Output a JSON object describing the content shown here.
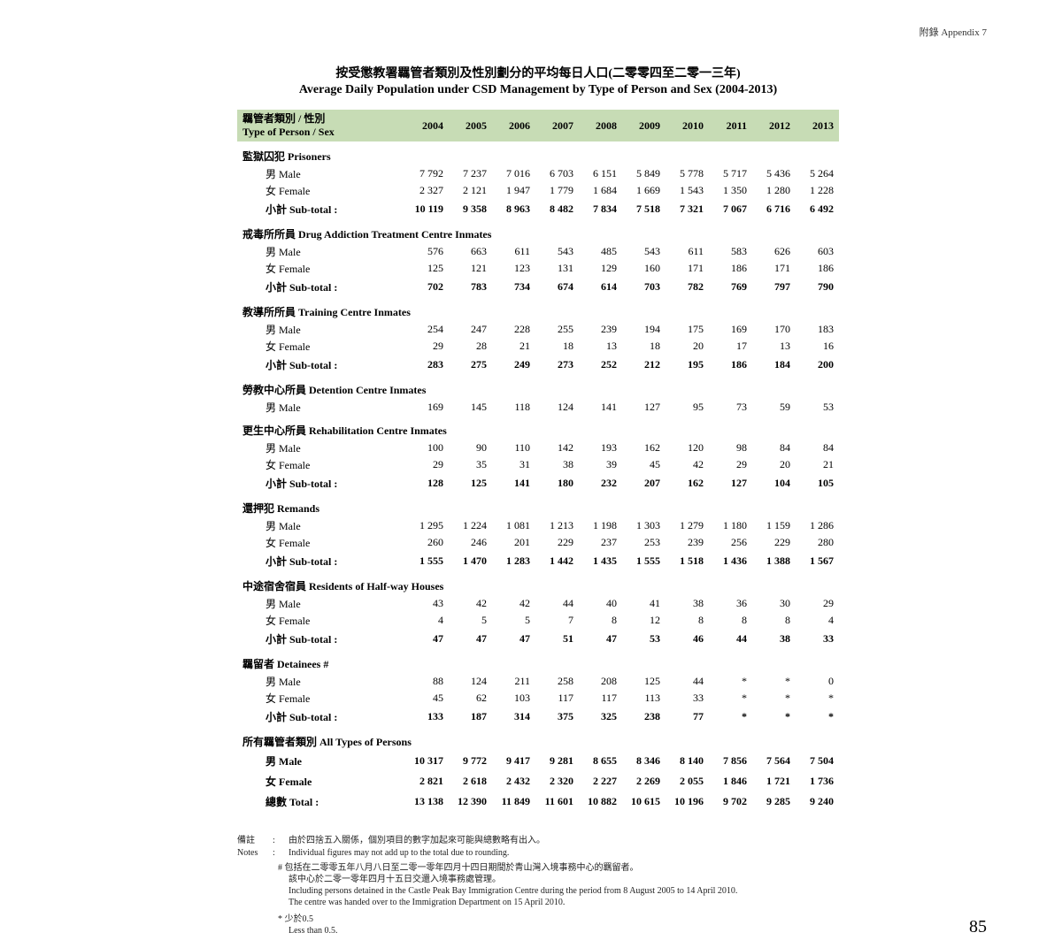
{
  "appendix": "附錄  Appendix 7",
  "page_number": "85",
  "title_zh": "按受懲教署羈管者類別及性別劃分的平均每日人口(二零零四至二零一三年)",
  "title_en": "Average Daily Population under CSD Management by Type of Person and Sex (2004-2013)",
  "header_label_zh": "羈管者類別 / 性別",
  "header_label_en": "Type of Person / Sex",
  "years": [
    "2004",
    "2005",
    "2006",
    "2007",
    "2008",
    "2009",
    "2010",
    "2011",
    "2012",
    "2013"
  ],
  "colors": {
    "header_bg": "#c7dcb5",
    "text": "#000000",
    "page_bg": "#ffffff"
  },
  "sections": [
    {
      "heading": "監獄囚犯 Prisoners",
      "rows": [
        {
          "label": "男 Male",
          "v": [
            "7 792",
            "7 237",
            "7 016",
            "6 703",
            "6 151",
            "5 849",
            "5 778",
            "5 717",
            "5 436",
            "5 264"
          ]
        },
        {
          "label": "女 Female",
          "v": [
            "2 327",
            "2 121",
            "1 947",
            "1 779",
            "1 684",
            "1 669",
            "1 543",
            "1 350",
            "1 280",
            "1 228"
          ]
        }
      ],
      "subtotal": {
        "label": "小計 Sub-total :",
        "v": [
          "10 119",
          "9 358",
          "8 963",
          "8 482",
          "7 834",
          "7 518",
          "7 321",
          "7 067",
          "6 716",
          "6 492"
        ]
      }
    },
    {
      "heading": "戒毒所所員 Drug Addiction Treatment Centre Inmates",
      "rows": [
        {
          "label": "男 Male",
          "v": [
            "576",
            "663",
            "611",
            "543",
            "485",
            "543",
            "611",
            "583",
            "626",
            "603"
          ]
        },
        {
          "label": "女 Female",
          "v": [
            "125",
            "121",
            "123",
            "131",
            "129",
            "160",
            "171",
            "186",
            "171",
            "186"
          ]
        }
      ],
      "subtotal": {
        "label": "小計 Sub-total :",
        "v": [
          "702",
          "783",
          "734",
          "674",
          "614",
          "703",
          "782",
          "769",
          "797",
          "790"
        ]
      }
    },
    {
      "heading": "教導所所員 Training Centre Inmates",
      "rows": [
        {
          "label": "男 Male",
          "v": [
            "254",
            "247",
            "228",
            "255",
            "239",
            "194",
            "175",
            "169",
            "170",
            "183"
          ]
        },
        {
          "label": "女 Female",
          "v": [
            "29",
            "28",
            "21",
            "18",
            "13",
            "18",
            "20",
            "17",
            "13",
            "16"
          ]
        }
      ],
      "subtotal": {
        "label": "小計 Sub-total :",
        "v": [
          "283",
          "275",
          "249",
          "273",
          "252",
          "212",
          "195",
          "186",
          "184",
          "200"
        ]
      }
    },
    {
      "heading": "勞教中心所員 Detention Centre Inmates",
      "rows": [
        {
          "label": "男 Male",
          "v": [
            "169",
            "145",
            "118",
            "124",
            "141",
            "127",
            "95",
            "73",
            "59",
            "53"
          ]
        }
      ]
    },
    {
      "heading": "更生中心所員 Rehabilitation Centre Inmates",
      "rows": [
        {
          "label": "男 Male",
          "v": [
            "100",
            "90",
            "110",
            "142",
            "193",
            "162",
            "120",
            "98",
            "84",
            "84"
          ]
        },
        {
          "label": "女 Female",
          "v": [
            "29",
            "35",
            "31",
            "38",
            "39",
            "45",
            "42",
            "29",
            "20",
            "21"
          ]
        }
      ],
      "subtotal": {
        "label": "小計 Sub-total :",
        "v": [
          "128",
          "125",
          "141",
          "180",
          "232",
          "207",
          "162",
          "127",
          "104",
          "105"
        ]
      }
    },
    {
      "heading": "還押犯 Remands",
      "rows": [
        {
          "label": "男 Male",
          "v": [
            "1 295",
            "1 224",
            "1 081",
            "1 213",
            "1 198",
            "1 303",
            "1 279",
            "1 180",
            "1 159",
            "1 286"
          ]
        },
        {
          "label": "女 Female",
          "v": [
            "260",
            "246",
            "201",
            "229",
            "237",
            "253",
            "239",
            "256",
            "229",
            "280"
          ]
        }
      ],
      "subtotal": {
        "label": "小計 Sub-total :",
        "v": [
          "1 555",
          "1 470",
          "1 283",
          "1 442",
          "1 435",
          "1 555",
          "1 518",
          "1 436",
          "1 388",
          "1 567"
        ]
      }
    },
    {
      "heading": "中途宿舍宿員 Residents of Half-way Houses",
      "rows": [
        {
          "label": "男 Male",
          "v": [
            "43",
            "42",
            "42",
            "44",
            "40",
            "41",
            "38",
            "36",
            "30",
            "29"
          ]
        },
        {
          "label": "女 Female",
          "v": [
            "4",
            "5",
            "5",
            "7",
            "8",
            "12",
            "8",
            "8",
            "8",
            "4"
          ]
        }
      ],
      "subtotal": {
        "label": "小計 Sub-total :",
        "v": [
          "47",
          "47",
          "47",
          "51",
          "47",
          "53",
          "46",
          "44",
          "38",
          "33"
        ]
      }
    },
    {
      "heading": "羈留者 Detainees #",
      "rows": [
        {
          "label": "男 Male",
          "v": [
            "88",
            "124",
            "211",
            "258",
            "208",
            "125",
            "44",
            "*",
            "*",
            "0"
          ]
        },
        {
          "label": "女 Female",
          "v": [
            "45",
            "62",
            "103",
            "117",
            "117",
            "113",
            "33",
            "*",
            "*",
            "*"
          ]
        }
      ],
      "subtotal": {
        "label": "小計 Sub-total :",
        "v": [
          "133",
          "187",
          "314",
          "375",
          "325",
          "238",
          "77",
          "*",
          "*",
          "*"
        ]
      }
    }
  ],
  "all_types": {
    "heading": "所有羈管者類別 All Types of Persons",
    "rows": [
      {
        "label": "男 Male",
        "v": [
          "10 317",
          "9 772",
          "9 417",
          "9 281",
          "8 655",
          "8 346",
          "8 140",
          "7 856",
          "7 564",
          "7 504"
        ]
      },
      {
        "label": "女 Female",
        "v": [
          "2 821",
          "2 618",
          "2 432",
          "2 320",
          "2 227",
          "2 269",
          "2 055",
          "1 846",
          "1 721",
          "1 736"
        ]
      }
    ],
    "total": {
      "label": "總數 Total :",
      "v": [
        "13 138",
        "12 390",
        "11 849",
        "11 601",
        "10 882",
        "10 615",
        "10 196",
        "9 702",
        "9 285",
        "9 240"
      ]
    }
  },
  "notes": {
    "label_zh": "備註",
    "label_en": "Notes",
    "line1_zh": "由於四捨五入關係，個別項目的數字加起來可能與總數略有出入。",
    "line1_en": "Individual figures may not add up to the total due to rounding.",
    "hash_zh": "包括在二零零五年八月八日至二零一零年四月十四日期間於青山灣入境事務中心的羈留者。",
    "hash_zh2": "該中心於二零一零年四月十五日交還入境事務處管理。",
    "hash_en": "Including persons detained in the Castle Peak Bay Immigration Centre during the period from 8 August 2005 to 14 April 2010.",
    "hash_en2": "The centre was handed over to the Immigration Department on 15 April 2010.",
    "star_zh": "少於0.5",
    "star_en": "Less than 0.5."
  }
}
